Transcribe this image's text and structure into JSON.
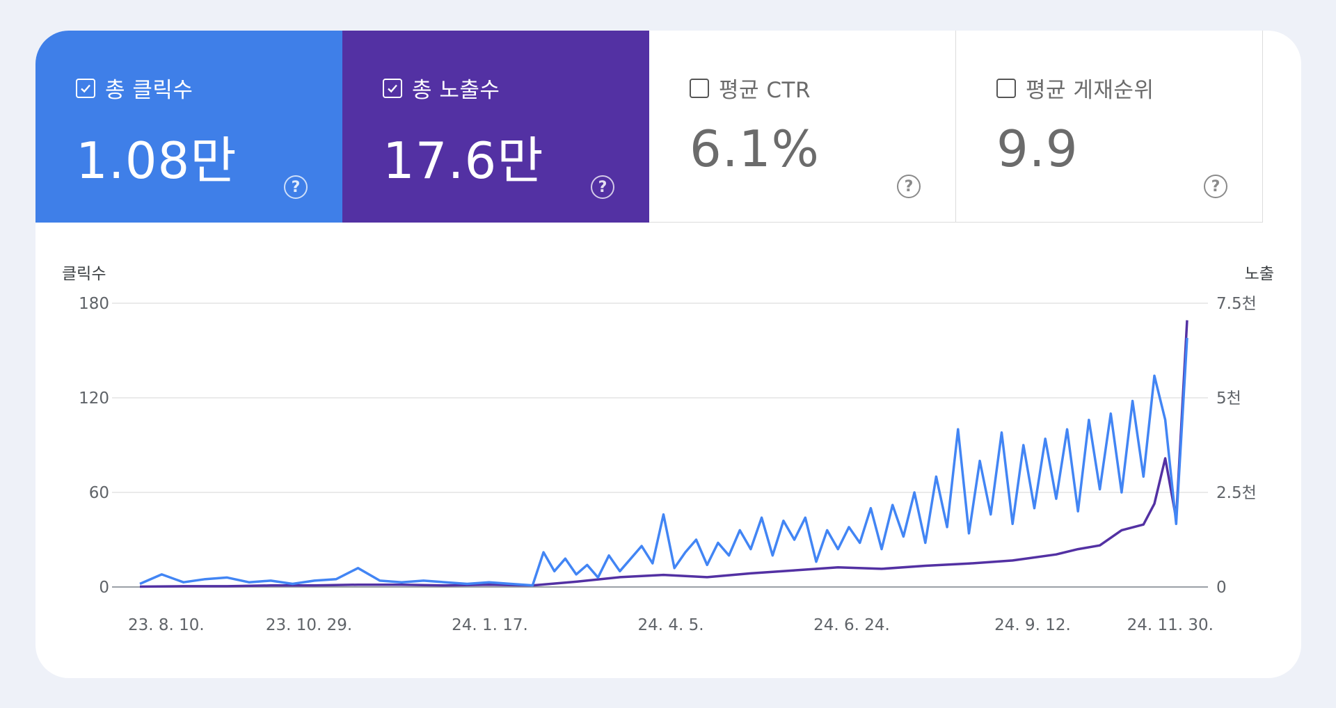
{
  "tiles": [
    {
      "label": "총 클릭수",
      "value": "1.08만",
      "checked": true,
      "color": "#3f7fe8",
      "help": "?"
    },
    {
      "label": "총 노출수",
      "value": "17.6만",
      "checked": true,
      "color": "#5331a3",
      "help": "?"
    },
    {
      "label": "평균 CTR",
      "value": "6.1%",
      "checked": false,
      "help": "?"
    },
    {
      "label": "평균 게재순위",
      "value": "9.9",
      "checked": false,
      "help": "?"
    }
  ],
  "chart_data": {
    "type": "line",
    "y_left_title": "클릭수",
    "y_right_title": "노출",
    "y_left_ticks": [
      "180",
      "120",
      "60",
      "0"
    ],
    "y_right_ticks": [
      "7.5천",
      "5천",
      "2.5천",
      "0"
    ],
    "y_left_range": [
      0,
      180
    ],
    "y_right_range": [
      0,
      7500
    ],
    "x_tick_labels": [
      "23. 8. 10.",
      "23. 10. 29.",
      "24. 1. 17.",
      "24. 4. 5.",
      "24. 6. 24.",
      "24. 9. 12.",
      "24. 11. 30."
    ],
    "grid": true,
    "series": [
      {
        "name": "클릭수",
        "axis": "left",
        "color": "#4285f4",
        "x": [
          0,
          10,
          20,
          30,
          40,
          50,
          60,
          70,
          80,
          90,
          100,
          110,
          120,
          130,
          140,
          150,
          160,
          170,
          180,
          185,
          190,
          195,
          200,
          205,
          210,
          215,
          220,
          225,
          230,
          235,
          240,
          245,
          250,
          255,
          260,
          265,
          270,
          275,
          280,
          285,
          290,
          295,
          300,
          305,
          310,
          315,
          320,
          325,
          330,
          335,
          340,
          345,
          350,
          355,
          360,
          365,
          370,
          375,
          380,
          385,
          390,
          395,
          400,
          405,
          410,
          415,
          420,
          425,
          430,
          435,
          440,
          445,
          450,
          455,
          460,
          465,
          470,
          475,
          480
        ],
        "values": [
          2,
          8,
          3,
          5,
          6,
          3,
          4,
          2,
          4,
          5,
          12,
          4,
          3,
          4,
          3,
          2,
          3,
          2,
          1,
          22,
          10,
          18,
          8,
          14,
          6,
          20,
          10,
          18,
          26,
          15,
          46,
          12,
          22,
          30,
          14,
          28,
          20,
          36,
          24,
          44,
          20,
          42,
          30,
          44,
          16,
          36,
          24,
          38,
          28,
          50,
          24,
          52,
          32,
          60,
          28,
          70,
          38,
          100,
          34,
          80,
          46,
          98,
          40,
          90,
          50,
          94,
          56,
          100,
          48,
          106,
          62,
          110,
          60,
          118,
          70,
          134,
          106,
          40,
          158
        ]
      },
      {
        "name": "노출",
        "axis": "right",
        "color": "#5331a3",
        "x": [
          0,
          20,
          40,
          60,
          80,
          100,
          120,
          140,
          160,
          180,
          200,
          220,
          240,
          260,
          280,
          300,
          320,
          340,
          360,
          380,
          400,
          420,
          430,
          440,
          450,
          460,
          465,
          470,
          475,
          480
        ],
        "values": [
          10,
          20,
          20,
          40,
          40,
          60,
          60,
          40,
          60,
          40,
          140,
          260,
          320,
          260,
          360,
          440,
          520,
          480,
          560,
          620,
          700,
          860,
          1000,
          1100,
          1500,
          1650,
          2200,
          3400,
          1800,
          7050
        ]
      }
    ]
  }
}
